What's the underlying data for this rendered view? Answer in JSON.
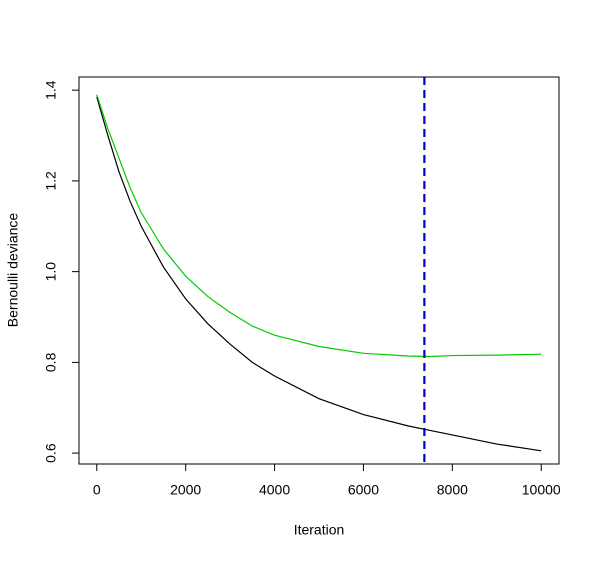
{
  "chart_data": {
    "type": "line",
    "xlabel": "Iteration",
    "ylabel": "Bernoulli deviance",
    "x": [
      0,
      250,
      500,
      750,
      1000,
      1500,
      2000,
      2500,
      3000,
      3500,
      4000,
      5000,
      6000,
      7000,
      7500,
      8000,
      9000,
      10000
    ],
    "series": [
      {
        "color": "#000000",
        "values": [
          1.385,
          1.3,
          1.22,
          1.155,
          1.1,
          1.01,
          0.94,
          0.885,
          0.84,
          0.8,
          0.77,
          0.72,
          0.685,
          0.66,
          0.65,
          0.64,
          0.62,
          0.605
        ]
      },
      {
        "color": "#00cc00",
        "values": [
          1.39,
          1.315,
          1.25,
          1.185,
          1.13,
          1.05,
          0.99,
          0.945,
          0.91,
          0.88,
          0.86,
          0.835,
          0.82,
          0.814,
          0.813,
          0.815,
          0.816,
          0.818
        ]
      }
    ],
    "vlines": [
      {
        "x": 7371,
        "color": "#0000cd"
      }
    ],
    "xlim": [
      -400,
      10400
    ],
    "ylim": [
      0.576,
      1.429
    ],
    "xticks": [
      0,
      2000,
      4000,
      6000,
      8000,
      10000
    ],
    "yticks": [
      0.6,
      0.8,
      {
        "value": 1,
        "label": "1.0"
      },
      1.2,
      1.4
    ]
  }
}
